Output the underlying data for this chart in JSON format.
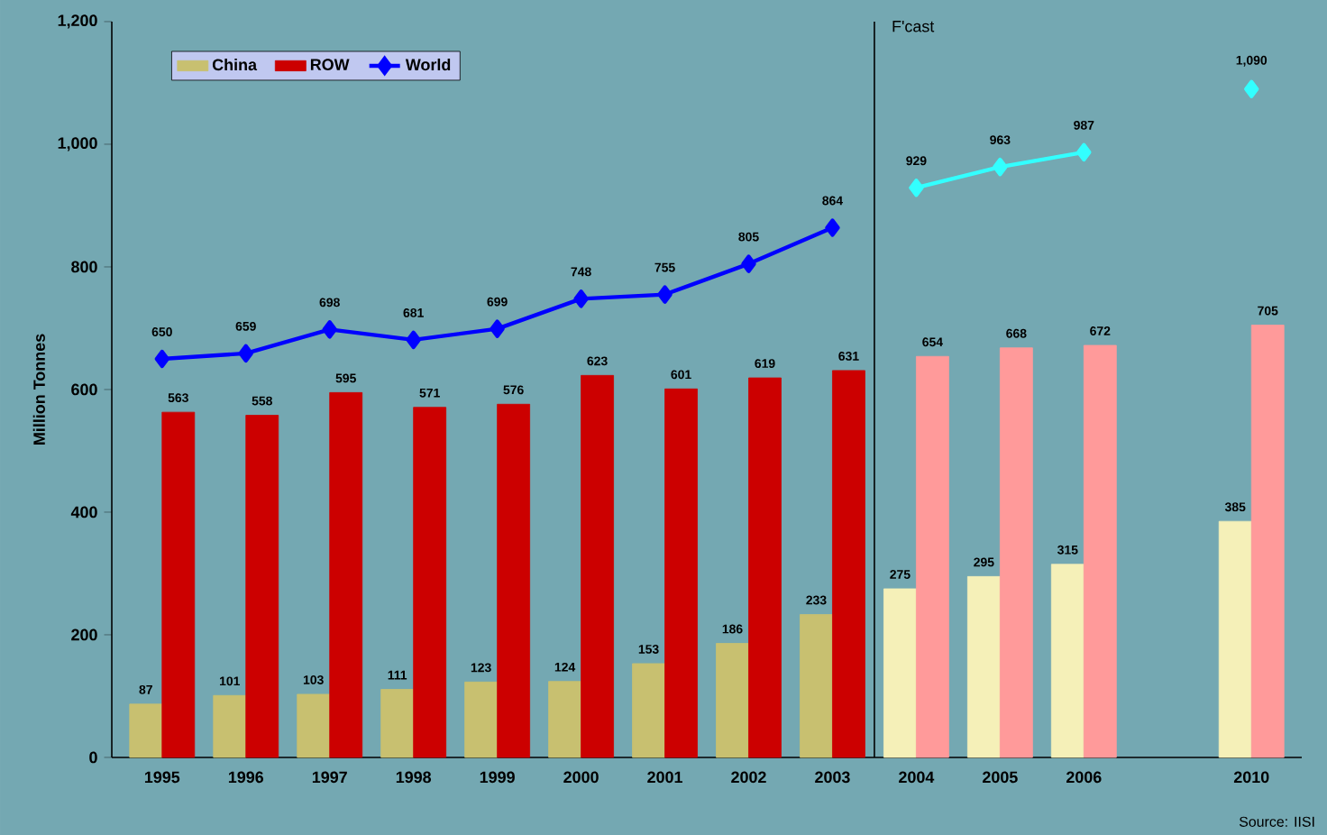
{
  "chart_data": {
    "type": "bar",
    "categories": [
      "1995",
      "1996",
      "1997",
      "1998",
      "1999",
      "2000",
      "2001",
      "2002",
      "2003",
      "2004",
      "2005",
      "2006",
      null,
      "2010"
    ],
    "ylabel": "Million Tonnes",
    "ylim": [
      0,
      1200
    ],
    "yticks": [
      0,
      200,
      400,
      600,
      800,
      {
        "value": 1000,
        "label": "1,000"
      },
      {
        "value": 1200,
        "label": "1,200"
      }
    ],
    "series": [
      {
        "name": "China",
        "color": "#c8c070",
        "colors": [
          "#c8c070",
          "#c8c070",
          "#c8c070",
          "#c8c070",
          "#c8c070",
          "#c8c070",
          "#c8c070",
          "#c8c070",
          "#c8c070",
          "#f5f0b8",
          "#f5f0b8",
          "#f5f0b8",
          null,
          "#f5f0b8"
        ],
        "values": [
          87,
          101,
          103,
          111,
          123,
          124,
          153,
          186,
          233,
          275,
          295,
          315,
          null,
          385
        ],
        "value_labels": [
          "87",
          "101",
          "103",
          "111",
          "123",
          "124",
          "153",
          "186",
          "233",
          "275",
          "295",
          "315",
          null,
          "385"
        ]
      },
      {
        "name": "ROW",
        "color": "#cc0000",
        "colors": [
          "#cc0000",
          "#cc0000",
          "#cc0000",
          "#cc0000",
          "#cc0000",
          "#cc0000",
          "#cc0000",
          "#cc0000",
          "#cc0000",
          "#ff9a9a",
          "#ff9a9a",
          "#ff9a9a",
          null,
          "#ff9a9a"
        ],
        "values": [
          563,
          558,
          595,
          571,
          576,
          623,
          601,
          619,
          631,
          654,
          668,
          672,
          null,
          705
        ],
        "value_labels": [
          "563",
          "558",
          "595",
          "571",
          "576",
          "623",
          "601",
          "619",
          "631",
          "654",
          "668",
          "672",
          null,
          "705"
        ]
      },
      {
        "name": "World",
        "type": "line",
        "color": "#0000ff",
        "values": [
          650,
          659,
          698,
          681,
          699,
          748,
          755,
          805,
          864,
          null,
          null,
          null,
          null,
          null
        ],
        "value_labels": [
          "650",
          "659",
          "698",
          "681",
          "699",
          "748",
          "755",
          "805",
          "864",
          null,
          null,
          null,
          null,
          null
        ]
      },
      {
        "type": "line",
        "color": "#33ffff",
        "values": [
          null,
          null,
          null,
          null,
          null,
          null,
          null,
          null,
          null,
          929,
          963,
          987,
          null,
          1090
        ],
        "value_labels": [
          null,
          null,
          null,
          null,
          null,
          null,
          null,
          null,
          null,
          "929",
          "963",
          "987",
          null,
          "1,090"
        ]
      }
    ],
    "marker": "diamond",
    "legend": "top left",
    "grid": false,
    "annotations": [
      "F'cast",
      "Source: IISI"
    ]
  }
}
